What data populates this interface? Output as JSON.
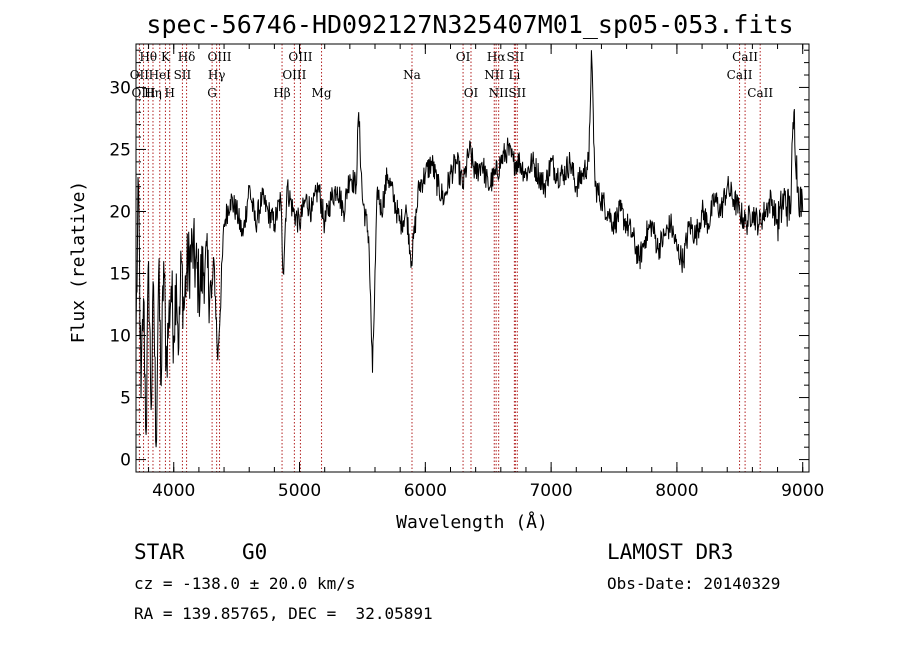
{
  "chart_data": {
    "type": "line",
    "title": "spec-56746-HD092127N325407M01_sp05-053.fits",
    "xlabel": "Wavelength (Å)",
    "ylabel": "Flux (relative)",
    "xlim": [
      3700,
      9050
    ],
    "ylim": [
      -1,
      33.5
    ],
    "xticks": [
      4000,
      5000,
      6000,
      7000,
      8000,
      9000
    ],
    "yticks": [
      0,
      5,
      10,
      15,
      20,
      25,
      30
    ],
    "series": [
      {
        "name": "flux",
        "x": [
          3700,
          3720,
          3740,
          3760,
          3780,
          3800,
          3820,
          3840,
          3860,
          3880,
          3900,
          3920,
          3940,
          3960,
          3980,
          4000,
          4020,
          4040,
          4060,
          4080,
          4100,
          4150,
          4200,
          4250,
          4300,
          4320,
          4350,
          4400,
          4450,
          4500,
          4550,
          4600,
          4650,
          4700,
          4750,
          4800,
          4850,
          4870,
          4900,
          4950,
          5000,
          5050,
          5100,
          5150,
          5200,
          5250,
          5300,
          5350,
          5400,
          5450,
          5470,
          5500,
          5550,
          5580,
          5620,
          5650,
          5700,
          5750,
          5800,
          5850,
          5890,
          5950,
          6000,
          6050,
          6100,
          6150,
          6200,
          6250,
          6300,
          6350,
          6400,
          6450,
          6500,
          6560,
          6600,
          6650,
          6700,
          6750,
          6800,
          6850,
          6900,
          6950,
          7000,
          7050,
          7100,
          7150,
          7200,
          7250,
          7300,
          7320,
          7350,
          7400,
          7450,
          7500,
          7550,
          7600,
          7650,
          7700,
          7750,
          7800,
          7850,
          7900,
          7950,
          8000,
          8050,
          8100,
          8150,
          8200,
          8250,
          8300,
          8350,
          8400,
          8450,
          8500,
          8550,
          8600,
          8650,
          8700,
          8750,
          8800,
          8850,
          8900,
          8930,
          8960,
          9000
        ],
        "values": [
          10,
          22,
          5,
          13,
          2,
          16,
          4,
          14,
          1,
          15,
          6,
          16,
          8,
          11,
          14,
          10,
          15,
          9,
          16,
          12,
          15,
          17,
          14,
          16,
          13,
          16,
          8,
          19,
          21,
          20,
          18,
          22,
          19,
          21,
          20,
          19,
          21,
          15,
          22,
          20,
          19,
          21,
          20,
          22,
          19,
          21,
          22,
          20,
          23,
          22,
          28,
          21,
          18,
          7,
          22,
          20,
          23,
          21,
          19,
          20,
          16,
          22,
          23,
          24,
          22,
          21,
          23,
          24,
          22,
          25,
          23,
          24,
          22,
          23,
          24,
          25,
          24,
          24,
          23,
          24,
          23,
          22,
          24,
          23,
          23,
          24,
          22,
          23,
          24,
          33,
          22,
          21,
          20,
          19,
          20,
          19,
          18,
          16,
          18,
          19,
          17,
          18,
          19,
          17,
          16,
          19,
          18,
          20,
          19,
          21,
          20,
          22,
          21,
          20,
          19,
          20,
          19,
          20,
          21,
          19,
          21,
          20,
          28,
          22,
          20
        ]
      }
    ],
    "line_markers": [
      {
        "label": "Hθ",
        "x": 3798,
        "row": 0
      },
      {
        "label": "OII",
        "x": 3727,
        "row": 1
      },
      {
        "label": "OIII",
        "x": 3760,
        "row": 2
      },
      {
        "label": "K",
        "x": 3934,
        "row": 0
      },
      {
        "label": "HeI",
        "x": 3889,
        "row": 1
      },
      {
        "label": "Hη",
        "x": 3835,
        "row": 2
      },
      {
        "label": "Hδ",
        "x": 4102,
        "row": 0
      },
      {
        "label": "SII",
        "x": 4069,
        "row": 1
      },
      {
        "label": "H",
        "x": 3968,
        "row": 2
      },
      {
        "label": "OIII",
        "x": 4364,
        "row": 0
      },
      {
        "label": "Hγ",
        "x": 4341,
        "row": 1
      },
      {
        "label": "G",
        "x": 4305,
        "row": 2
      },
      {
        "label": "OIII",
        "x": 5007,
        "row": 0
      },
      {
        "label": "OIII",
        "x": 4959,
        "row": 1
      },
      {
        "label": "Hβ",
        "x": 4861,
        "row": 2
      },
      {
        "label": "Mg",
        "x": 5175,
        "row": 2
      },
      {
        "label": "Na",
        "x": 5894,
        "row": 1
      },
      {
        "label": "OI",
        "x": 6300,
        "row": 0
      },
      {
        "label": "OI",
        "x": 6363,
        "row": 2
      },
      {
        "label": "Hα",
        "x": 6563,
        "row": 0
      },
      {
        "label": "SII",
        "x": 6716,
        "row": 0
      },
      {
        "label": "NII",
        "x": 6548,
        "row": 1
      },
      {
        "label": "Li",
        "x": 6708,
        "row": 1
      },
      {
        "label": "NII",
        "x": 6583,
        "row": 2
      },
      {
        "label": "SII",
        "x": 6731,
        "row": 2
      },
      {
        "label": "CaII",
        "x": 8542,
        "row": 0
      },
      {
        "label": "CaII",
        "x": 8498,
        "row": 1
      },
      {
        "label": "CaII",
        "x": 8662,
        "row": 2
      }
    ]
  },
  "info": {
    "object_class": "STAR",
    "subclass": "G0",
    "survey": "LAMOST DR3",
    "redshift": "cz = -138.0 ± 20.0 km/s",
    "obs_date": "Obs-Date: 20140329",
    "coords": "RA = 139.85765, DEC =  32.05891"
  }
}
